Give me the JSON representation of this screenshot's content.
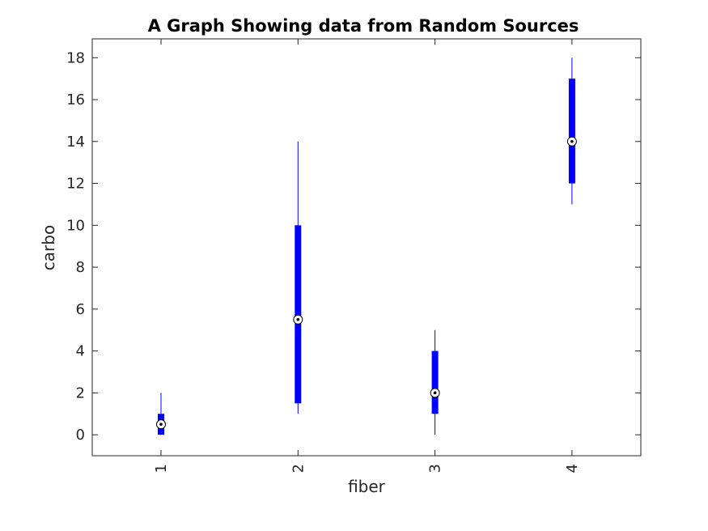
{
  "chart_data": {
    "type": "box",
    "title": "A Graph Showing data from Random Sources",
    "xlabel": "fiber",
    "ylabel": "carbo",
    "categories": [
      "1",
      "2",
      "3",
      "4"
    ],
    "ylim": [
      -1,
      18.9
    ],
    "yticks": [
      0,
      2,
      4,
      6,
      8,
      10,
      12,
      14,
      16,
      18
    ],
    "box_color": "#0000ff",
    "boxes": [
      {
        "category": "1",
        "whisker_low": 0,
        "q1": 0,
        "median": 0.5,
        "q3": 1,
        "whisker_high": 2
      },
      {
        "category": "2",
        "whisker_low": 1,
        "q1": 1.5,
        "median": 5.5,
        "q3": 10,
        "whisker_high": 14
      },
      {
        "category": "3",
        "whisker_low": 0,
        "q1": 1,
        "median": 2,
        "q3": 4,
        "whisker_high": 5
      },
      {
        "category": "4",
        "whisker_low": 11,
        "q1": 12,
        "median": 14,
        "q3": 17,
        "whisker_high": 18
      }
    ],
    "grid": false
  }
}
